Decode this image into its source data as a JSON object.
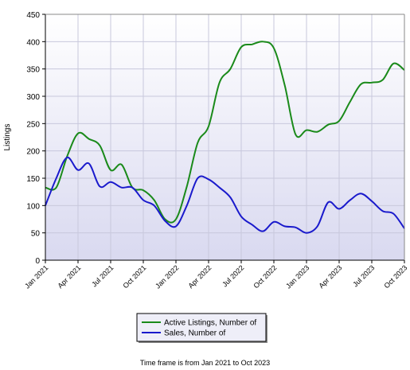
{
  "chart_data": {
    "type": "line",
    "ylabel": "Listings",
    "ylim": [
      0,
      450
    ],
    "y_ticks": [
      0,
      50,
      100,
      150,
      200,
      250,
      300,
      350,
      400,
      450
    ],
    "x_tick_labels": [
      "Jan 2021",
      "Apr 2021",
      "Jul 2021",
      "Oct 2021",
      "Jan 2022",
      "Apr 2022",
      "Jul 2022",
      "Oct 2022",
      "Jan 2023",
      "Apr 2023",
      "Jul 2023",
      "Oct 2023"
    ],
    "x_tick_positions": [
      0,
      3,
      6,
      9,
      12,
      15,
      18,
      21,
      24,
      27,
      30,
      33
    ],
    "x": [
      "Jan 2021",
      "Feb 2021",
      "Mar 2021",
      "Apr 2021",
      "May 2021",
      "Jun 2021",
      "Jul 2021",
      "Aug 2021",
      "Sep 2021",
      "Oct 2021",
      "Nov 2021",
      "Dec 2021",
      "Jan 2022",
      "Feb 2022",
      "Mar 2022",
      "Apr 2022",
      "May 2022",
      "Jun 2022",
      "Jul 2022",
      "Aug 2022",
      "Sep 2022",
      "Oct 2022",
      "Nov 2022",
      "Dec 2022",
      "Jan 2023",
      "Feb 2023",
      "Mar 2023",
      "Apr 2023",
      "May 2023",
      "Jun 2023",
      "Jul 2023",
      "Aug 2023",
      "Sep 2023",
      "Oct 2023"
    ],
    "grid": true,
    "legend_position": "bottom-center",
    "series": [
      {
        "name": "Active Listings, Number of",
        "color": "#1a8a1a",
        "values": [
          133,
          133,
          190,
          232,
          222,
          210,
          165,
          175,
          133,
          128,
          110,
          75,
          75,
          135,
          215,
          245,
          325,
          350,
          390,
          395,
          400,
          388,
          320,
          230,
          238,
          235,
          248,
          255,
          290,
          322,
          325,
          330,
          360,
          348
        ]
      },
      {
        "name": "Sales, Number of",
        "color": "#1a1acc",
        "values": [
          100,
          150,
          188,
          165,
          177,
          135,
          143,
          133,
          133,
          110,
          100,
          72,
          62,
          100,
          150,
          148,
          133,
          115,
          80,
          65,
          53,
          70,
          62,
          60,
          50,
          62,
          106,
          94,
          110,
          122,
          108,
          90,
          85,
          58
        ]
      }
    ]
  },
  "caption": "Time frame is from Jan 2021 to Oct 2023"
}
